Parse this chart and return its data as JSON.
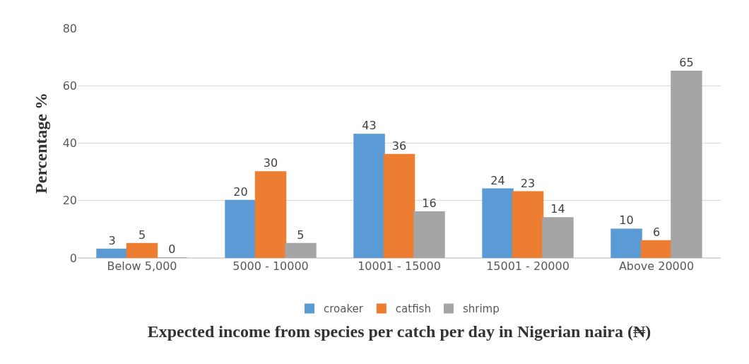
{
  "chart_data": {
    "type": "bar",
    "xlabel": "Expected income from species per catch per day in Nigerian naira (₦)",
    "ylabel": "Percentage %",
    "categories": [
      "Below 5,000",
      "5000 - 10000",
      "10001 - 15000",
      "15001 - 20000",
      "Above 20000"
    ],
    "series": [
      {
        "name": "croaker",
        "color": "#5b9bd5",
        "values": [
          3,
          20,
          43,
          24,
          10
        ]
      },
      {
        "name": "catfish",
        "color": "#ed7d31",
        "values": [
          5,
          30,
          36,
          23,
          6
        ]
      },
      {
        "name": "shrimp",
        "color": "#a5a5a5",
        "values": [
          0,
          5,
          16,
          14,
          65
        ]
      }
    ],
    "ylim": [
      0,
      80
    ],
    "yticks": [
      0,
      20,
      40,
      60,
      80
    ],
    "grid": "y",
    "legend": "bottom",
    "data_labels": true
  }
}
